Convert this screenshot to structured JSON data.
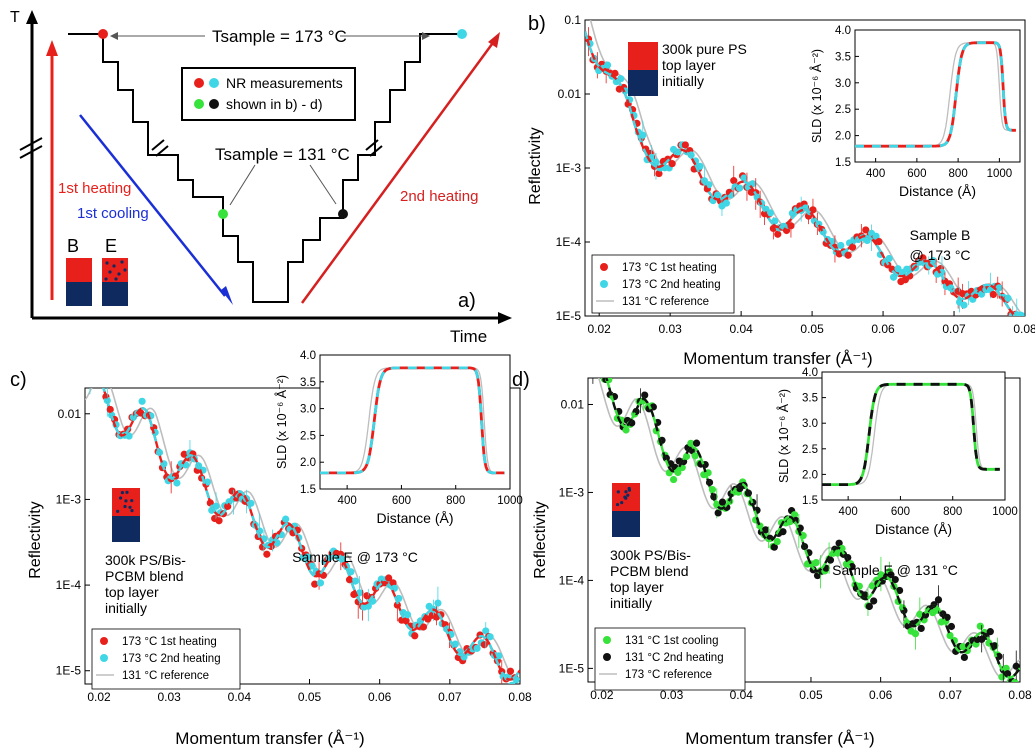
{
  "colors": {
    "red": "#e8201c",
    "cyan": "#3fd7e6",
    "green": "#37e23a",
    "black": "#111111",
    "gray": "#bdbdbd",
    "navy": "#0f2a5f",
    "blue": "#1a2fd6",
    "darkred": "#d62020"
  },
  "panel_a": {
    "label": "a)",
    "t_axis": "T",
    "time_axis": "Time",
    "t_sample_high": "Tsample = 173 °C",
    "t_sample_low": "Tsample = 131 °C",
    "legend_line1": "NR measurements",
    "legend_line2": "shown in b) - d)",
    "first_heating": "1st heating",
    "first_cooling": "1st cooling",
    "second_heating": "2nd heating",
    "sample_b": "B",
    "sample_e": "E"
  },
  "chart_data": [
    {
      "panel": "b)",
      "type": "scatter",
      "xlabel": "Momentum transfer (Å⁻¹)",
      "ylabel": "Reflectivity",
      "xlim": [
        0.018,
        0.08
      ],
      "ylim": [
        1e-05,
        0.1
      ],
      "y_scale": "log",
      "x_ticks": [
        "0.02",
        "0.03",
        "0.04",
        "0.05",
        "0.06",
        "0.07",
        "0.08"
      ],
      "y_ticks": [
        "1E-5",
        "1E-4",
        "1E-3",
        "0.01",
        "0.1"
      ],
      "sample_text": [
        "Sample B",
        "@ 173 °C"
      ],
      "schematic_text": [
        "300k pure PS",
        "top layer",
        "initially"
      ],
      "legend": [
        "173 °C 1st heating",
        "173 °C 2nd heating",
        "131 °C reference"
      ],
      "series": [
        {
          "name": "173 °C 1st heating",
          "color": "red"
        },
        {
          "name": "173 °C 2nd heating",
          "color": "cyan"
        },
        {
          "name": "131 °C reference",
          "color": "gray"
        }
      ],
      "curve": {
        "start": 0.1,
        "knee": 0.025,
        "knee_val": 0.003,
        "end": 1.2e-05,
        "period": 0.0086,
        "phase": 0.0235,
        "amp": 0.55,
        "ref_shift": 0.0012
      },
      "inset": {
        "xlabel": "Distance (Å)",
        "ylabel": "SLD (x 10⁻⁶ Å⁻²)",
        "xlim": [
          300,
          1100
        ],
        "ylim": [
          1.5,
          4.0
        ],
        "x_ticks": [
          "400",
          "600",
          "800",
          "1000"
        ],
        "y_ticks": [
          "1.5",
          "2.0",
          "2.5",
          "3.0",
          "3.5",
          "4.0"
        ],
        "low": 1.8,
        "high": 3.76,
        "rise": 790,
        "width": 55,
        "drop": 1018,
        "end": 2.1,
        "ref_rise": 760,
        "ref_drop": 1000
      }
    },
    {
      "panel": "c)",
      "type": "scatter",
      "xlabel": "Momentum transfer (Å⁻¹)",
      "ylabel": "Reflectivity",
      "xlim": [
        0.018,
        0.08
      ],
      "ylim": [
        7e-06,
        0.02
      ],
      "y_scale": "log",
      "x_ticks": [
        "0.02",
        "0.03",
        "0.04",
        "0.05",
        "0.06",
        "0.07",
        "0.08"
      ],
      "y_ticks": [
        "1E-5",
        "1E-4",
        "1E-3",
        "0.01"
      ],
      "sample_text": [
        "Sample E @ 173 °C"
      ],
      "schematic_text": [
        "300k PS/Bis-",
        "PCBM blend",
        "top layer",
        "initially"
      ],
      "legend": [
        "173 °C 1st heating",
        "173 °C 2nd heating",
        "131 °C reference"
      ],
      "series": [
        {
          "name": "173 °C 1st heating",
          "color": "red"
        },
        {
          "name": "173 °C 2nd heating",
          "color": "cyan"
        },
        {
          "name": "131 °C reference",
          "color": "gray"
        }
      ],
      "curve": {
        "start": 0.02,
        "knee": 0.027,
        "knee_val": 0.006,
        "end": 1e-05,
        "period": 0.0069,
        "phase": 0.0265,
        "amp": 0.6,
        "ref_shift": 0.0011
      },
      "inset": {
        "xlabel": "Distance (Å)",
        "ylabel": "SLD (x 10⁻⁶ Å⁻²)",
        "xlim": [
          300,
          1000
        ],
        "ylim": [
          1.5,
          4.0
        ],
        "x_ticks": [
          "400",
          "600",
          "800",
          "1000"
        ],
        "y_ticks": [
          "1.5",
          "2.0",
          "2.5",
          "3.0",
          "3.5",
          "4.0"
        ],
        "low": 1.8,
        "high": 3.76,
        "rise": 500,
        "width": 45,
        "drop": 895,
        "end": 1.8,
        "ref_rise": 480,
        "ref_drop": 905
      }
    },
    {
      "panel": "d)",
      "type": "scatter",
      "xlabel": "Momentum transfer (Å⁻¹)",
      "ylabel": "Reflectivity",
      "xlim": [
        0.018,
        0.08
      ],
      "ylim": [
        7e-06,
        0.02
      ],
      "y_scale": "log",
      "x_ticks": [
        "0.02",
        "0.03",
        "0.04",
        "0.05",
        "0.06",
        "0.07",
        "0.08"
      ],
      "y_ticks": [
        "1E-5",
        "1E-4",
        "1E-3",
        "0.01"
      ],
      "sample_text": [
        "Sample E @ 131 °C"
      ],
      "schematic_text": [
        "300k PS/Bis-",
        "PCBM blend",
        "top layer",
        "initially"
      ],
      "legend": [
        "131 °C 1st cooling",
        "131 °C 2nd heating",
        "173 °C reference"
      ],
      "series": [
        {
          "name": "131 °C 1st cooling",
          "color": "green"
        },
        {
          "name": "131 °C 2nd heating",
          "color": "black"
        },
        {
          "name": "173 °C reference",
          "color": "gray"
        }
      ],
      "curve": {
        "start": 0.02,
        "knee": 0.026,
        "knee_val": 0.007,
        "end": 1e-05,
        "period": 0.0069,
        "phase": 0.0265,
        "amp": 0.6,
        "ref_shift": -0.0011
      },
      "inset": {
        "xlabel": "Distance (Å)",
        "ylabel": "SLD (x 10⁻⁶ Å⁻²)",
        "xlim": [
          300,
          1000
        ],
        "ylim": [
          1.5,
          4.0
        ],
        "x_ticks": [
          "400",
          "600",
          "800",
          "1000"
        ],
        "y_ticks": [
          "1.5",
          "2.0",
          "2.5",
          "3.0",
          "3.5",
          "4.0"
        ],
        "low": 1.8,
        "high": 3.76,
        "rise": 480,
        "width": 45,
        "drop": 880,
        "end": 2.1,
        "ref_rise": 500,
        "ref_drop": 890
      }
    }
  ]
}
